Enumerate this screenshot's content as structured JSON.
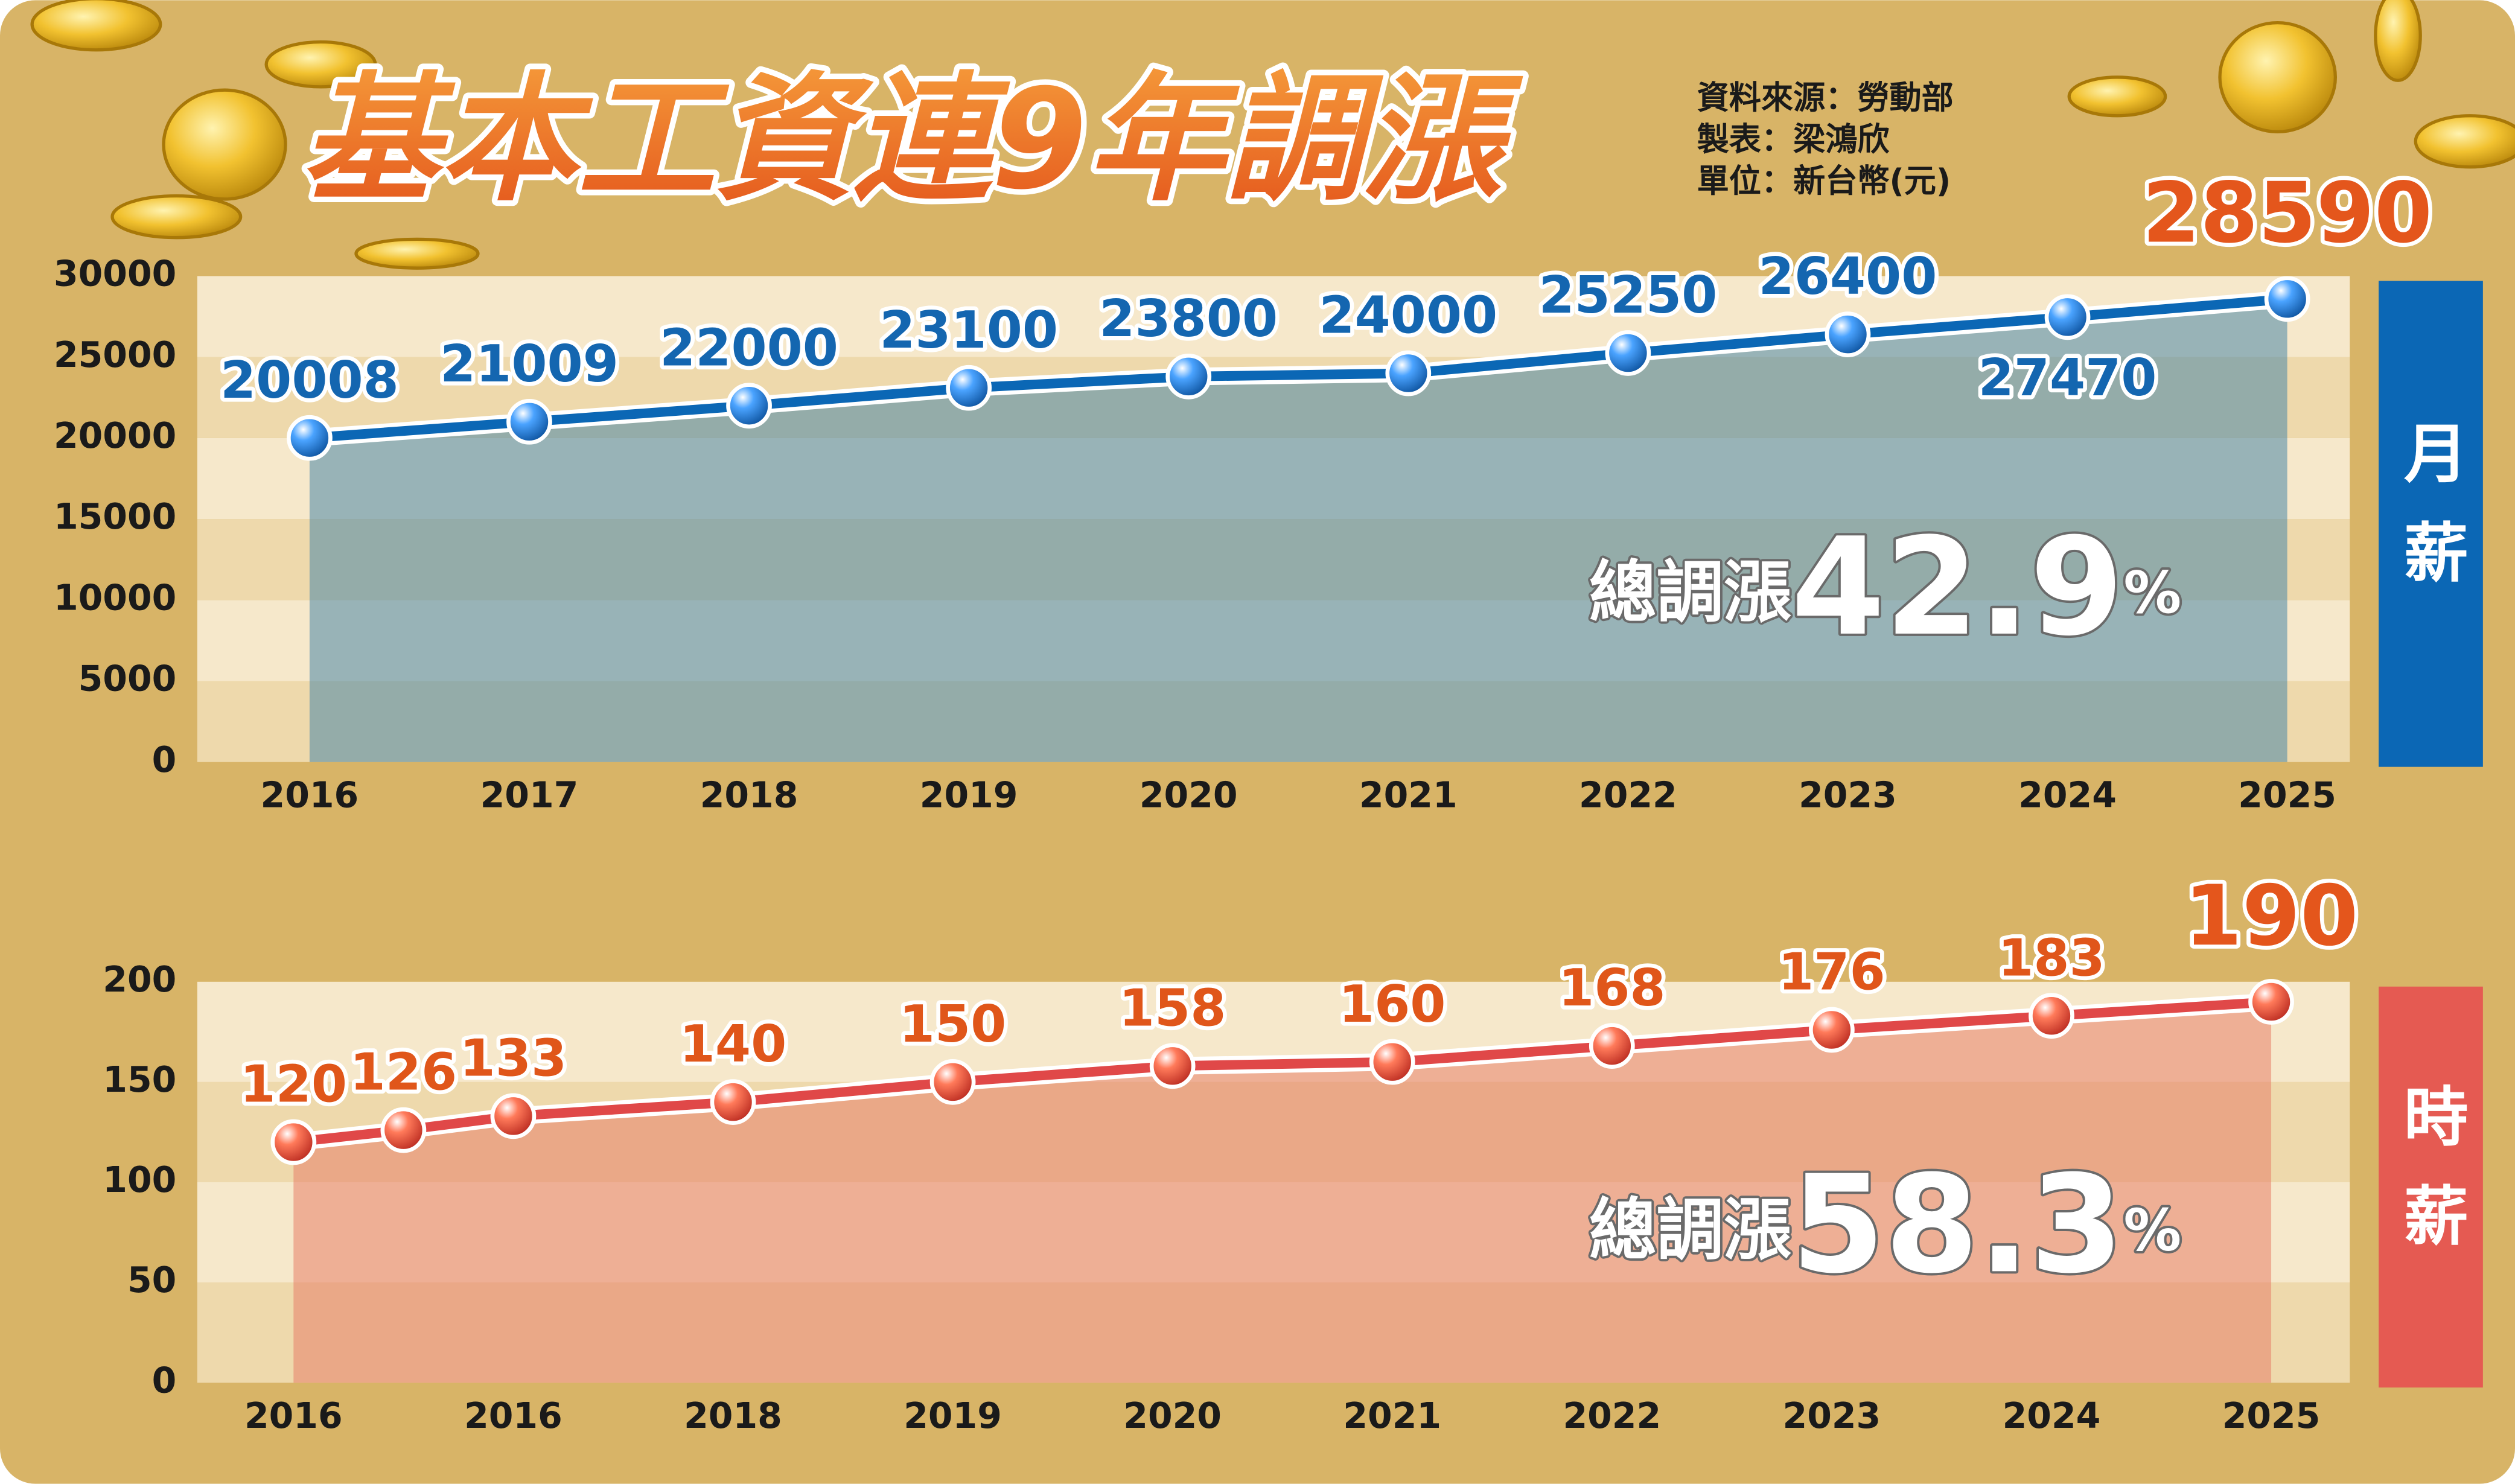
{
  "header": {
    "title": "基本工資連9年調漲",
    "notes": [
      "資料來源：勞動部",
      "製表：梁鴻欣",
      "單位：新台幣(元)"
    ]
  },
  "chart_data": [
    {
      "type": "line",
      "label": "月薪",
      "color": "#0b67b5",
      "label_color": "#1466b0",
      "area_color": "#4a86a8",
      "categories": [
        "2016",
        "2017",
        "2018",
        "2019",
        "2020",
        "2021",
        "2022",
        "2023",
        "2024",
        "2025"
      ],
      "values": [
        20008,
        21009,
        22000,
        23100,
        23800,
        24000,
        25250,
        26400,
        27470,
        28590
      ],
      "ylim": [
        0,
        30000
      ],
      "yticks": [
        0,
        5000,
        10000,
        15000,
        20000,
        25000,
        30000
      ],
      "annotation": {
        "text": "總調漲",
        "value": 42.9,
        "unit": "%"
      }
    },
    {
      "type": "line",
      "label": "時薪",
      "color": "#e04848",
      "label_color": "#e0561a",
      "area_color": "#e8806a",
      "categories": [
        "2016",
        null,
        "2016",
        "2018",
        "2019",
        "2020",
        "2021",
        "2022",
        "2023",
        "2024",
        "2025"
      ],
      "values": [
        120,
        126,
        133,
        140,
        150,
        158,
        160,
        168,
        176,
        183,
        190
      ],
      "ylim": [
        0,
        200
      ],
      "yticks": [
        0,
        50,
        100,
        150,
        200
      ],
      "annotation": {
        "text": "總調漲",
        "value": 58.3,
        "unit": "%"
      }
    }
  ]
}
